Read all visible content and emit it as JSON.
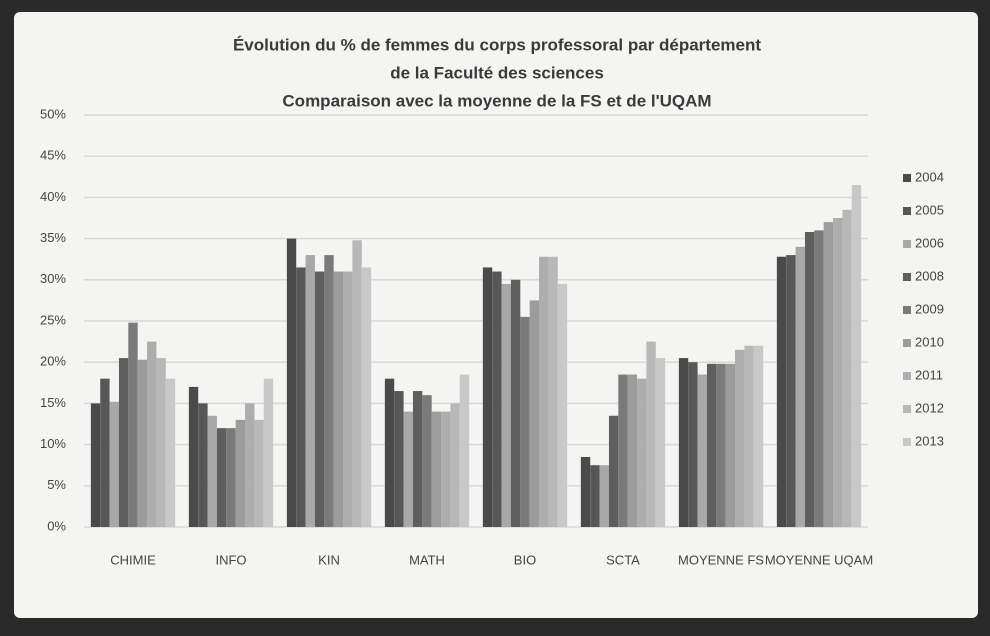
{
  "chart_data": {
    "type": "bar",
    "title": [
      "Évolution du % de femmes du corps professoral par département",
      "de la Faculté des sciences",
      "Comparaison avec la moyenne de la FS et de l'UQAM"
    ],
    "categories": [
      "CHIMIE",
      "INFO",
      "KIN",
      "MATH",
      "BIO",
      "SCTA",
      "MOYENNE FS",
      "MOYENNE UQAM"
    ],
    "series": [
      {
        "name": "2004",
        "color": "#4a4a4a",
        "values": [
          15,
          17,
          35,
          18,
          31.5,
          8.5,
          20.5,
          32.8
        ]
      },
      {
        "name": "2005",
        "color": "#575757",
        "values": [
          18,
          15,
          31.5,
          16.5,
          31,
          7.5,
          20,
          33
        ]
      },
      {
        "name": "2006",
        "color": "#a8a8a8",
        "values": [
          15.2,
          13.5,
          33,
          14,
          29.5,
          7.5,
          18.5,
          34
        ]
      },
      {
        "name": "2008",
        "color": "#5e5e5e",
        "values": [
          20.5,
          12,
          31,
          16.5,
          30,
          13.5,
          19.8,
          35.8
        ]
      },
      {
        "name": "2009",
        "color": "#7a7a7a",
        "values": [
          24.8,
          12,
          33,
          16,
          25.5,
          18.5,
          19.8,
          36
        ]
      },
      {
        "name": "2010",
        "color": "#9c9c9c",
        "values": [
          20.3,
          13,
          31,
          14,
          27.5,
          18.5,
          19.8,
          37
        ]
      },
      {
        "name": "2011",
        "color": "#adadad",
        "values": [
          22.5,
          15,
          31,
          14,
          32.8,
          18,
          21.5,
          37.5
        ]
      },
      {
        "name": "2012",
        "color": "#b8b8b8",
        "values": [
          20.5,
          13,
          34.8,
          15,
          32.8,
          22.5,
          22,
          38.5
        ]
      },
      {
        "name": "2013",
        "color": "#c8c8c8",
        "values": [
          18,
          18,
          31.5,
          18.5,
          29.5,
          20.5,
          22,
          41.5
        ]
      }
    ],
    "ylim": [
      0,
      50
    ],
    "yticks": [
      {
        "value": 0,
        "label": "0%"
      },
      {
        "value": 5,
        "label": "5%"
      },
      {
        "value": 10,
        "label": "10%"
      },
      {
        "value": 15,
        "label": "15%"
      },
      {
        "value": 20,
        "label": "20%"
      },
      {
        "value": 25,
        "label": "25%"
      },
      {
        "value": 30,
        "label": "30%"
      },
      {
        "value": 35,
        "label": "35%"
      },
      {
        "value": 40,
        "label": "40%"
      },
      {
        "value": 45,
        "label": "45%"
      },
      {
        "value": 50,
        "label": "50%"
      }
    ],
    "grid": true,
    "legend": "right"
  }
}
